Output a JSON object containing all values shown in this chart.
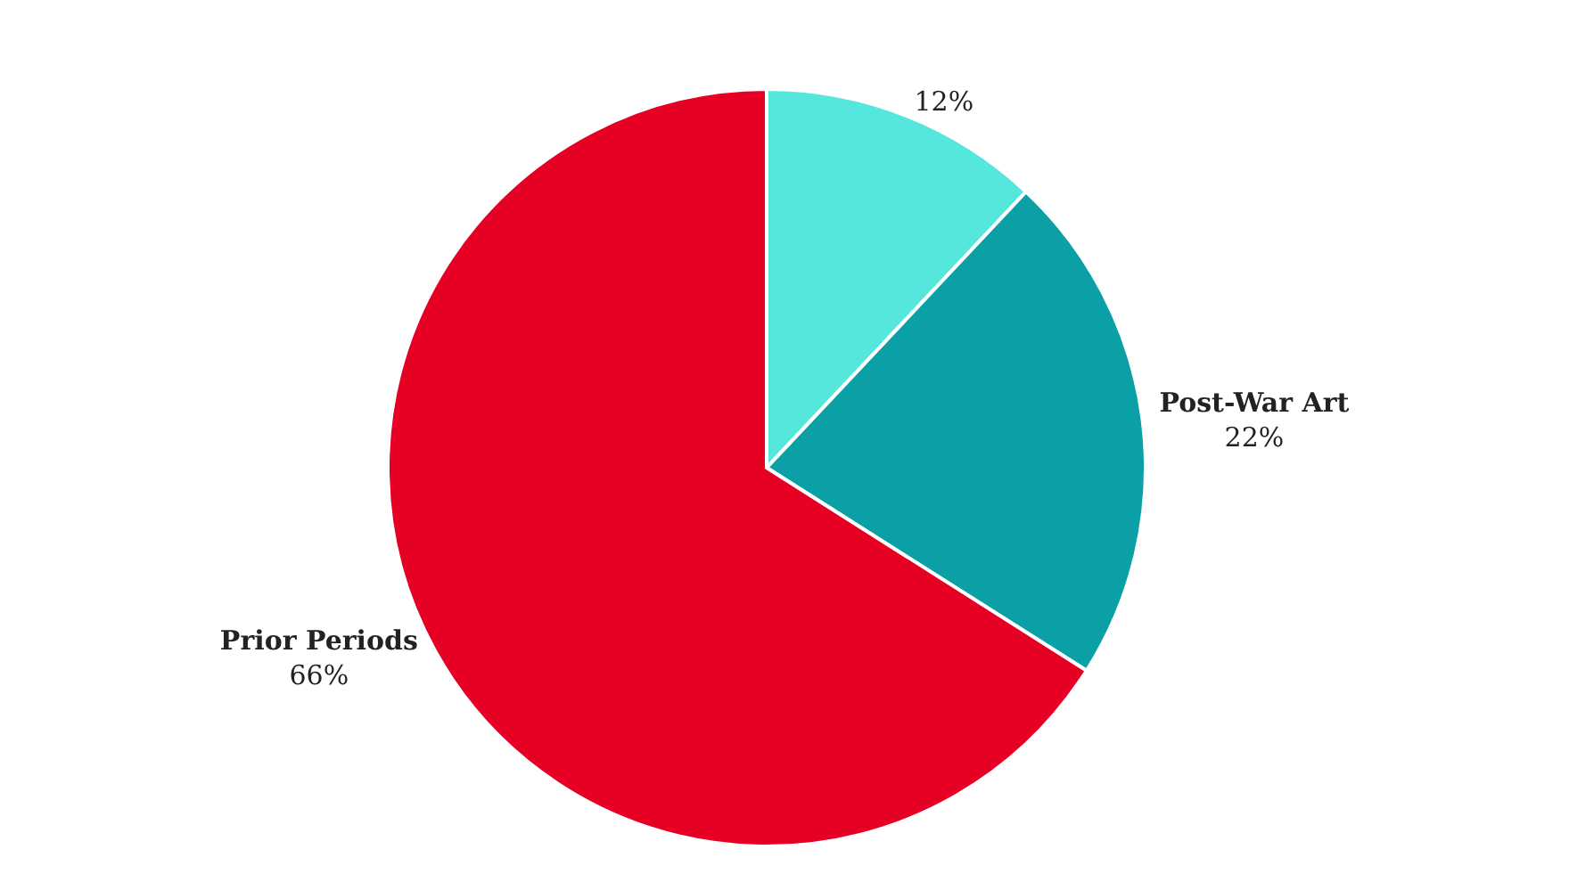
{
  "chart_data": {
    "type": "pie",
    "categories": [
      null,
      "Post-War Art",
      "Prior Periods"
    ],
    "values": [
      12,
      22,
      66
    ],
    "colors": [
      "#55e6dc",
      "#0aa0a5",
      "#e60023"
    ],
    "value_labels": [
      "12%",
      "22%",
      "66%"
    ]
  }
}
